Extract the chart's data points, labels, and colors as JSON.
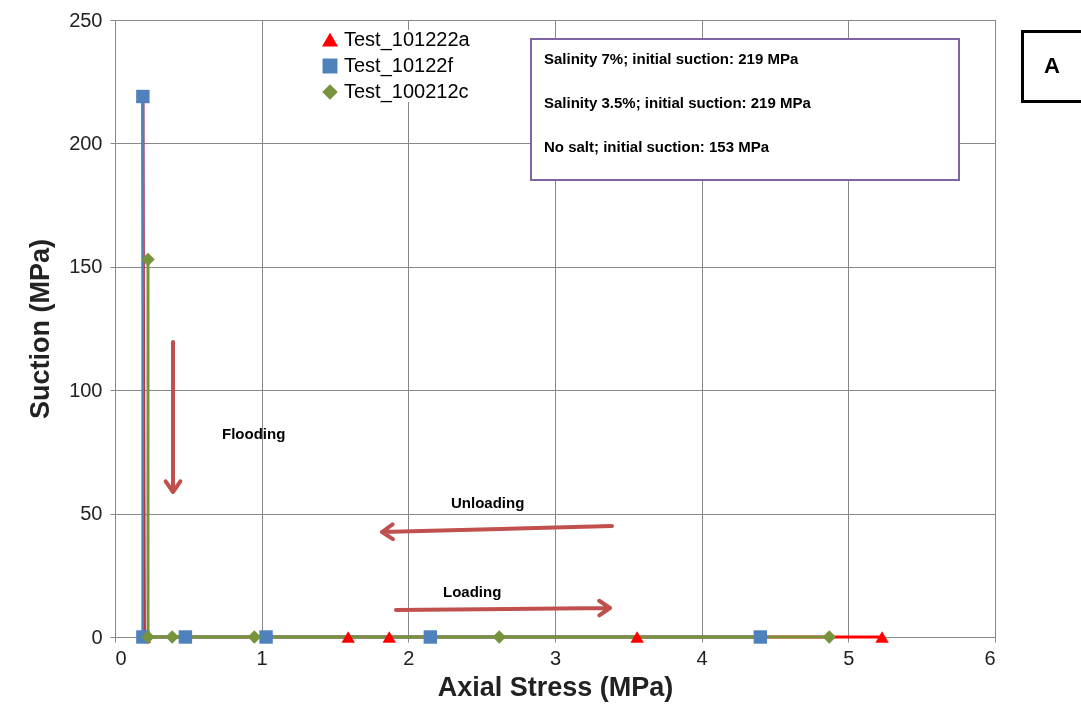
{
  "chart_data": {
    "type": "line",
    "xlabel": "Axial Stress (MPa)",
    "ylabel": "Suction (MPa)",
    "xlim": [
      0,
      6
    ],
    "xticks": [
      0,
      1,
      2,
      3,
      4,
      5,
      6
    ],
    "ylim": [
      0,
      250
    ],
    "yticks": [
      0,
      50,
      100,
      150,
      200,
      250
    ],
    "grid": true,
    "legend": "top",
    "series": [
      {
        "name": "Test_101222a",
        "color": "#ff0000",
        "marker": "triangle",
        "x": [
          0.19,
          0.2,
          1.59,
          1.87,
          3.56,
          5.23
        ],
        "values": [
          219,
          0,
          0,
          0,
          0,
          0
        ]
      },
      {
        "name": "Test_10122f",
        "color": "#4f81bd",
        "marker": "square",
        "x": [
          0.19,
          0.19,
          0.48,
          1.03,
          2.15,
          4.4
        ],
        "values": [
          219,
          0,
          0,
          0,
          0,
          0
        ]
      },
      {
        "name": "Test_100212c",
        "color": "#77933c",
        "marker": "diamond",
        "x": [
          0.225,
          0.225,
          0.39,
          0.95,
          2.62,
          4.87
        ],
        "values": [
          153,
          0,
          0,
          0,
          0,
          0
        ]
      }
    ],
    "annotations": [
      "Salinity 7%; initial suction: 219 MPa",
      "Salinity 3.5%; initial suction: 219 MPa",
      "No salt; initial suction: 153 MPa",
      "Flooding",
      "Unloading",
      "Loading",
      "A"
    ]
  }
}
